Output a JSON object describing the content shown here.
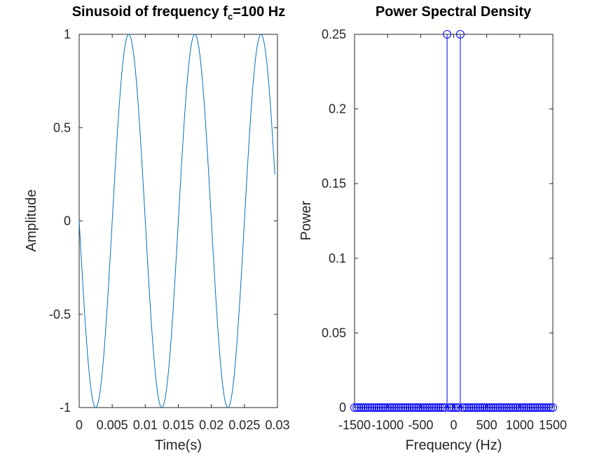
{
  "chart_data": [
    {
      "type": "line",
      "title": "Sinusoid of frequency f",
      "title_subscript": "c",
      "title_suffix": "=100 Hz",
      "xlabel": "Time(s)",
      "ylabel": "Amplitude",
      "xlim": [
        0,
        0.03
      ],
      "ylim": [
        -1,
        1
      ],
      "xticks": [
        0,
        0.005,
        0.01,
        0.015,
        0.02,
        0.025,
        0.03
      ],
      "xtick_labels": [
        "0",
        "0.005",
        "0.01",
        "0.015",
        "0.02",
        "0.025",
        "0.03"
      ],
      "yticks": [
        -1,
        -0.5,
        0,
        0.5,
        1
      ],
      "ytick_labels": [
        "-1",
        "-0.5",
        "0",
        "0.5",
        "1"
      ],
      "grid": false,
      "series": [
        {
          "function": "-sin(2*pi*f*t)",
          "frequency_hz": 100,
          "t_start": 0,
          "t_end": 0.0296,
          "samples": 300,
          "color": "#0072bd"
        }
      ]
    },
    {
      "type": "stem",
      "title": "Power Spectral Density",
      "xlabel": "Frequency (Hz)",
      "ylabel": "Power",
      "xlim": [
        -1500,
        1500
      ],
      "ylim": [
        0,
        0.25
      ],
      "xticks": [
        -1500,
        -1000,
        -500,
        0,
        500,
        1000,
        1500
      ],
      "xtick_labels": [
        "-1500",
        "-1000",
        "-500",
        "0",
        "500",
        "1000",
        "1500"
      ],
      "yticks": [
        0,
        0.05,
        0.1,
        0.15,
        0.2,
        0.25
      ],
      "ytick_labels": [
        "0",
        "0.05",
        "0.1",
        "0.15",
        "0.2",
        "0.25"
      ],
      "grid": false,
      "series": [
        {
          "x_start": -1500,
          "x_end": 1500,
          "x_step": 33.33,
          "baseline": 0,
          "peaks": [
            {
              "x": -100,
              "y": 0.25
            },
            {
              "x": 100,
              "y": 0.25
            }
          ],
          "color": "#0000ff"
        }
      ]
    }
  ]
}
